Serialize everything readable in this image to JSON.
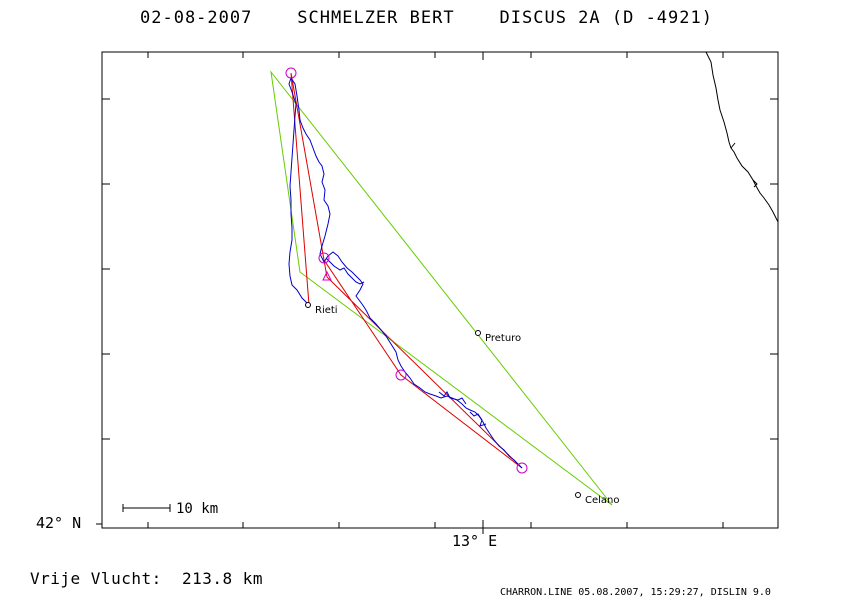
{
  "header": {
    "title": "02-08-2007    SCHMELZER BERT    DISCUS 2A (D -4921)"
  },
  "axes": {
    "latitude_label": "42° N",
    "longitude_label": "13° E"
  },
  "scale_bar": {
    "label": "10 km"
  },
  "places": [
    {
      "name": "Rieti"
    },
    {
      "name": "Preturo"
    },
    {
      "name": "Celano"
    }
  ],
  "summary": {
    "distance_text": "Vrije Vlucht:  213.8 km"
  },
  "footer": {
    "text": "CHARRON.LINE 05.08.2007, 15:29:27, DISLIN 9.0"
  },
  "colors": {
    "flight_track": "#0000cc",
    "task_line": "#dd0000",
    "free_flight_polygon": "#66cc00",
    "turnpoint_marker": "#cc00cc",
    "coastline": "#000000"
  }
}
